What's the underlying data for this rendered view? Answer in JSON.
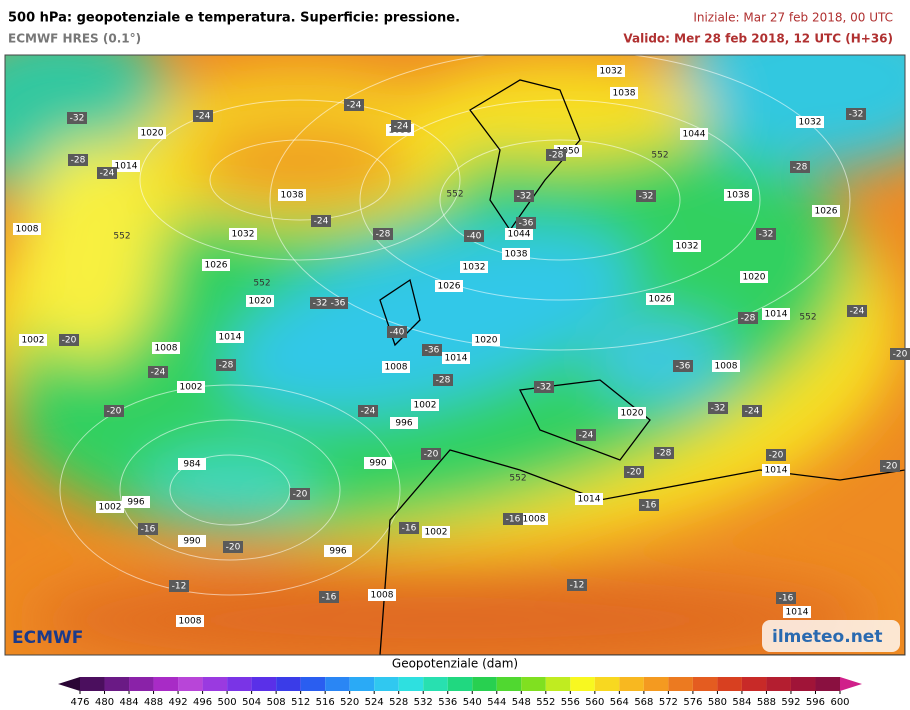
{
  "header": {
    "title": "500 hPa: geopotenziale e temperatura. Superficie: pressione.",
    "model": "ECMWF HRES (0.1°)",
    "init": "Iniziale: Mar 27 feb 2018, 00 UTC",
    "valid": "Valido: Mer 28 feb 2018, 12 UTC (H+36)"
  },
  "map": {
    "pressure_labels": [
      1032,
      1038,
      1044,
      1032,
      1020,
      1014,
      1038,
      1050,
      1038,
      1032,
      1038,
      1026,
      1008,
      1044,
      1038,
      1032,
      1026,
      1032,
      1020,
      1026,
      1026,
      1020,
      1014,
      1014,
      1020,
      1002,
      1008,
      1014,
      1008,
      1008,
      1002,
      1002,
      1020,
      996,
      984,
      990,
      1014,
      1014,
      996,
      1002,
      1008,
      1002,
      990,
      996,
      1008,
      1008,
      1014
    ],
    "temperature_labels": [
      -24,
      -24,
      -32,
      -24,
      -32,
      -28,
      -24,
      -28,
      -28,
      -32,
      -32,
      -24,
      -28,
      -36,
      -40,
      -32,
      -32,
      -36,
      -24,
      -20,
      -28,
      -40,
      -36,
      -28,
      -24,
      -28,
      -32,
      -36,
      -20,
      -20,
      -24,
      -32,
      -24,
      -24,
      -20,
      -28,
      -20,
      -20,
      -20,
      -20,
      -16,
      -16,
      -16,
      -16,
      -20,
      -12,
      -16,
      -12,
      -16
    ],
    "contour_labels": [
      552,
      552,
      552,
      552,
      552,
      552
    ]
  },
  "colorbar": {
    "title": "Geopotenziale (dam)",
    "ticks": [
      476,
      480,
      484,
      488,
      492,
      496,
      500,
      504,
      508,
      512,
      516,
      520,
      524,
      528,
      532,
      536,
      540,
      544,
      548,
      552,
      556,
      560,
      564,
      568,
      572,
      576,
      580,
      584,
      588,
      592,
      596,
      600
    ],
    "colors": [
      "#4b0f5e",
      "#6a1a85",
      "#8a22a8",
      "#a82bc6",
      "#b845d8",
      "#9a3ae0",
      "#7a34e6",
      "#5a30e8",
      "#3a3ce8",
      "#2a5ef0",
      "#2a86f4",
      "#2aaaf6",
      "#30c8f0",
      "#2ee0e0",
      "#28e0b0",
      "#20d880",
      "#28d050",
      "#50d830",
      "#80e020",
      "#c0ec20",
      "#f8f820",
      "#f8d820",
      "#f8b820",
      "#f49a20",
      "#ec7a20",
      "#e45c20",
      "#d84020",
      "#c82a28",
      "#b41e30",
      "#a01438",
      "#8a1040"
    ],
    "under_color": "#2a0535",
    "over_color": "#d0208a"
  },
  "logos": {
    "left": "ECMWF",
    "right": "ilmeteo.net"
  }
}
